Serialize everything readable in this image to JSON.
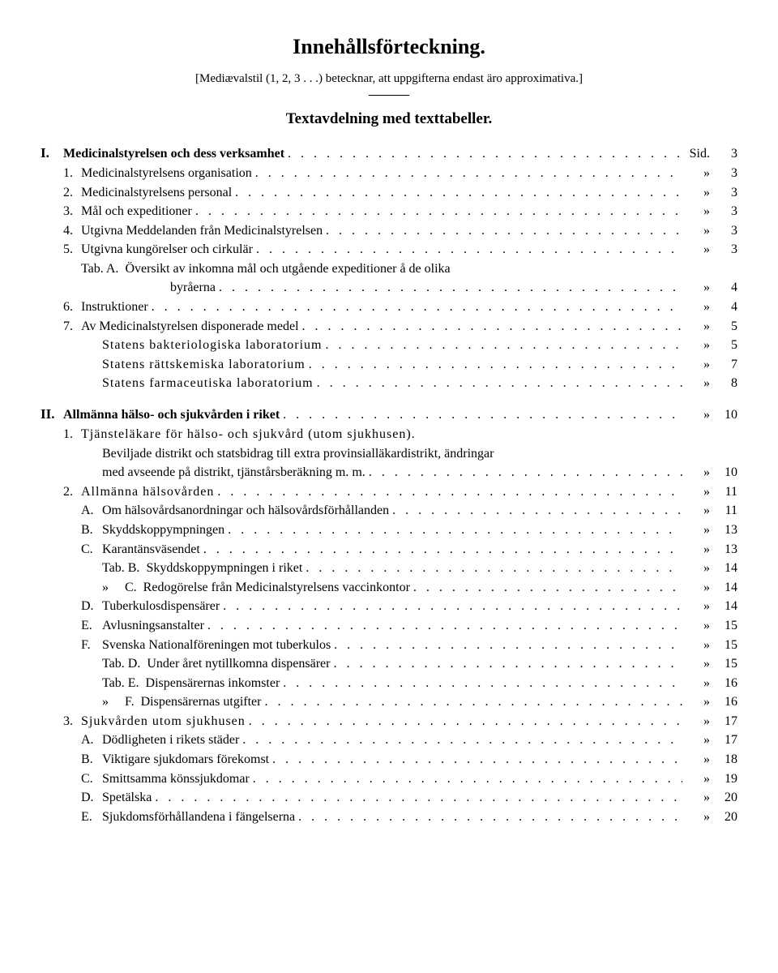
{
  "title": "Innehållsförteckning.",
  "subtitle": "[Mediævalstil (1, 2, 3 . . .) betecknar, att uppgifterna endast äro approximativa.]",
  "section_heading": "Textavdelning med texttabeller.",
  "sid_label": "Sid.",
  "ditto": "»",
  "I": {
    "rn": "I.",
    "title": "Medicinalstyrelsen och dess verksamhet",
    "page": "3",
    "items": [
      {
        "n": "1.",
        "t": "Medicinalstyrelsens organisation",
        "p": "3"
      },
      {
        "n": "2.",
        "t": "Medicinalstyrelsens personal",
        "p": "3"
      },
      {
        "n": "3.",
        "t": "Mål och expeditioner",
        "p": "3"
      },
      {
        "n": "4.",
        "t": "Utgivna Meddelanden från Medicinalstyrelsen",
        "p": "3"
      },
      {
        "n": "5.",
        "t": "Utgivna kungörelser och cirkulär",
        "p": "3"
      }
    ],
    "tabA_lead": "Tab. A.",
    "tabA_t1": "Översikt av inkomna mål och utgående expeditioner å de olika",
    "tabA_t2": "byråerna",
    "tabA_p": "4",
    "item6": {
      "n": "6.",
      "t": "Instruktioner",
      "p": "4"
    },
    "item7": {
      "n": "7.",
      "t": "Av Medicinalstyrelsen disponerade medel",
      "p": "5"
    },
    "subs7": [
      {
        "t": "Statens bakteriologiska laboratorium",
        "p": "5"
      },
      {
        "t": "Statens rättskemiska laboratorium",
        "p": "7"
      },
      {
        "t": "Statens farmaceutiska laboratorium",
        "p": "8"
      }
    ]
  },
  "II": {
    "rn": "II.",
    "title": "Allmänna hälso- och sjukvården i riket",
    "page": "10",
    "item1": {
      "n": "1.",
      "lead": "Tjänsteläkare för hälso- och sjukvård (utom sjukhusen).",
      "l2": "Beviljade distrikt och statsbidrag till extra provinsialläkardistrikt, ändringar",
      "l3": "med avseende på distrikt, tjänstårsberäkning m. m.",
      "p": "10"
    },
    "item2": {
      "n": "2.",
      "t": "Allmänna hälsovården",
      "p": "11"
    },
    "item2subs": [
      {
        "l": "A.",
        "t": "Om hälsovårdsanordningar och hälsovårdsförhållanden",
        "p": "11"
      },
      {
        "l": "B.",
        "t": "Skyddskoppympningen",
        "p": "13"
      },
      {
        "l": "C.",
        "t": "Karantänsväsendet",
        "p": "13"
      }
    ],
    "tabB": {
      "lead": "Tab. B.",
      "t": "Skyddskoppympningen i riket",
      "p": "14"
    },
    "tabC": {
      "lead": "»     C.",
      "t": "Redogörelse från Medicinalstyrelsens vaccinkontor",
      "p": "14"
    },
    "item2subs2": [
      {
        "l": "D.",
        "t": "Tuberkulosdispensärer",
        "p": "14"
      },
      {
        "l": "E.",
        "t": "Avlusningsanstalter",
        "p": "15"
      },
      {
        "l": "F.",
        "t": "Svenska Nationalföreningen mot tuberkulos",
        "p": "15"
      }
    ],
    "tabD": {
      "lead": "Tab. D.",
      "t": "Under året nytillkomna dispensärer",
      "p": "15"
    },
    "tabE": {
      "lead": "Tab. E.",
      "t": "Dispensärernas inkomster",
      "p": "16"
    },
    "tabF": {
      "lead": "»     F.",
      "t": "Dispensärernas utgifter",
      "p": "16"
    },
    "item3": {
      "n": "3.",
      "t": "Sjukvården utom sjukhusen",
      "p": "17"
    },
    "item3subs": [
      {
        "l": "A.",
        "t": "Dödligheten i rikets städer",
        "p": "17"
      },
      {
        "l": "B.",
        "t": "Viktigare sjukdomars förekomst",
        "p": "18"
      },
      {
        "l": "C.",
        "t": "Smittsamma könssjukdomar",
        "p": "19"
      },
      {
        "l": "D.",
        "t": "Spetälska",
        "p": "20"
      },
      {
        "l": "E.",
        "t": "Sjukdomsförhållandena i fängelserna",
        "p": "20"
      }
    ]
  }
}
